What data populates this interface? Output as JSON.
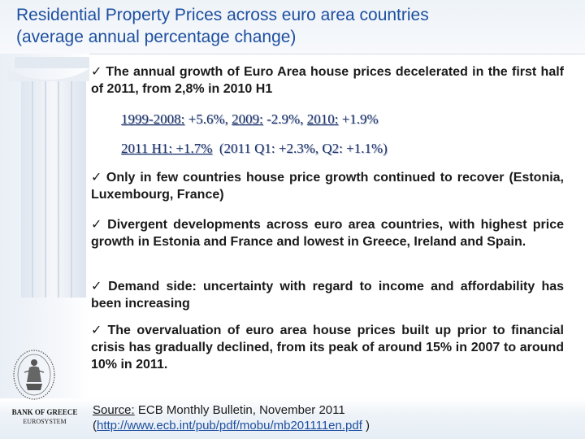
{
  "header": {
    "title_line1": "Residential Property Prices across euro area countries",
    "title_line2": "(average annual percentage change)"
  },
  "bullets": [
    "The annual growth of Euro Area house prices decelerated in the first half of 2011, from 2,8% in 2010 H1",
    "Only in few countries house price growth continued to recover (Estonia, Luxembourg, France)",
    "Divergent developments across euro area countries, with highest price growth in Estonia and France and lowest in Greece, Ireland and Spain.",
    "Demand side: uncertainty with regard to income and affordability has been increasing",
    "The overvaluation of euro area house prices built up prior to financial crisis has gradually declined, from its peak of around 15% in 2007 to around 10% in 2011."
  ],
  "check_glyph": "✓",
  "stats": {
    "line1": {
      "p1_label": "1999-2008:",
      "p1_value": " +5.6%, ",
      "p2_label": "2009:",
      "p2_value": " -2.9%, ",
      "p3_label": "2010:",
      "p3_value": " +1.9%"
    },
    "line2": {
      "h1_label": "2011 H1:",
      "h1_value": " +1.7%",
      "detail": "  (2011 Q1: +2.3%, Q2: +1.1%)"
    }
  },
  "footer": {
    "bank_name": "BANK OF GREECE",
    "bank_sub": "EUROSYSTEM",
    "source_label": "Source:",
    "source_text": " ECB Monthly Bulletin, November 2011",
    "paren_open": "(",
    "source_url": "http://www.ecb.int/pub/pdf/mobu/mb201111en.pdf",
    "paren_close": " )"
  },
  "colors": {
    "title": "#1d4fa0",
    "stats": "#1a2f66",
    "link": "#1d4fa0"
  },
  "icons": {
    "bullet": "check-icon",
    "logo": "bank-seal-icon",
    "decor": "greek-column-icon"
  }
}
